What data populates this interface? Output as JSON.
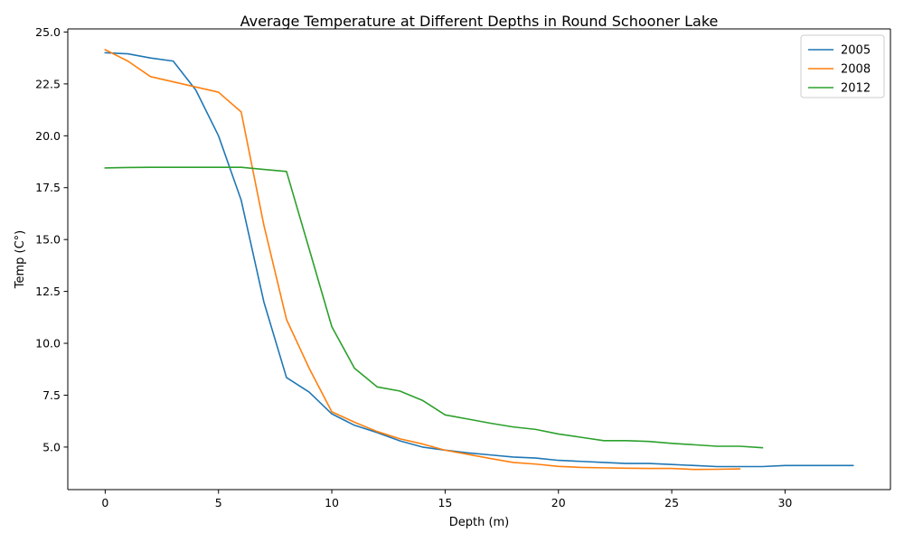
{
  "chart_data": {
    "type": "line",
    "title": "Average Temperature at Different Depths in Round Schooner Lake",
    "xlabel": "Depth (m)",
    "ylabel": "Temp (C°)",
    "xlim": [
      -1.65,
      34.65
    ],
    "ylim": [
      2.95,
      25.15
    ],
    "xticks": [
      0,
      5,
      10,
      15,
      20,
      25,
      30
    ],
    "xtick_labels": [
      "0",
      "5",
      "10",
      "15",
      "20",
      "25",
      "30"
    ],
    "yticks": [
      5.0,
      7.5,
      10.0,
      12.5,
      15.0,
      17.5,
      20.0,
      22.5,
      25.0
    ],
    "ytick_labels": [
      "5.0",
      "7.5",
      "10.0",
      "12.5",
      "15.0",
      "17.5",
      "20.0",
      "22.5",
      "25.0"
    ],
    "grid": false,
    "legend_position": "top-right",
    "series": [
      {
        "name": "2005",
        "color": "#1f77b4",
        "x": [
          0,
          1,
          2,
          3,
          4,
          5,
          6,
          7,
          8,
          9,
          10,
          11,
          12,
          13,
          14,
          15,
          16,
          17,
          18,
          19,
          20,
          21,
          22,
          23,
          24,
          25,
          26,
          27,
          28,
          29,
          30,
          31,
          32,
          33
        ],
        "y": [
          24.0,
          23.95,
          23.75,
          23.6,
          22.2,
          20.0,
          16.9,
          12.0,
          8.35,
          7.65,
          6.6,
          6.05,
          5.7,
          5.3,
          5.0,
          4.85,
          4.72,
          4.62,
          4.52,
          4.47,
          4.36,
          4.31,
          4.26,
          4.21,
          4.21,
          4.16,
          4.11,
          4.06,
          4.06,
          4.06,
          4.11,
          4.11,
          4.11,
          4.11
        ]
      },
      {
        "name": "2008",
        "color": "#ff7f0e",
        "x": [
          0,
          1,
          2,
          3,
          4,
          5,
          6,
          7,
          8,
          9,
          10,
          11,
          12,
          13,
          14,
          15,
          16,
          17,
          18,
          19,
          20,
          21,
          22,
          23,
          24,
          25,
          26,
          27,
          28
        ],
        "y": [
          24.15,
          23.6,
          22.85,
          22.6,
          22.35,
          22.1,
          21.15,
          15.7,
          11.15,
          8.8,
          6.7,
          6.2,
          5.75,
          5.4,
          5.15,
          4.85,
          4.65,
          4.45,
          4.26,
          4.18,
          4.07,
          4.02,
          4.0,
          3.98,
          3.97,
          3.97,
          3.92,
          3.93,
          3.95
        ]
      },
      {
        "name": "2012",
        "color": "#2ca02c",
        "x": [
          0,
          1,
          2,
          3,
          4,
          5,
          6,
          7,
          8,
          9,
          10,
          11,
          12,
          13,
          14,
          15,
          16,
          17,
          18,
          19,
          20,
          21,
          22,
          23,
          24,
          25,
          26,
          27,
          28,
          29
        ],
        "y": [
          18.45,
          18.47,
          18.48,
          18.48,
          18.48,
          18.48,
          18.48,
          18.38,
          18.28,
          14.55,
          10.8,
          8.8,
          7.9,
          7.7,
          7.25,
          6.55,
          6.35,
          6.15,
          5.97,
          5.85,
          5.63,
          5.47,
          5.31,
          5.31,
          5.27,
          5.18,
          5.11,
          5.04,
          5.04,
          4.97
        ]
      }
    ]
  }
}
